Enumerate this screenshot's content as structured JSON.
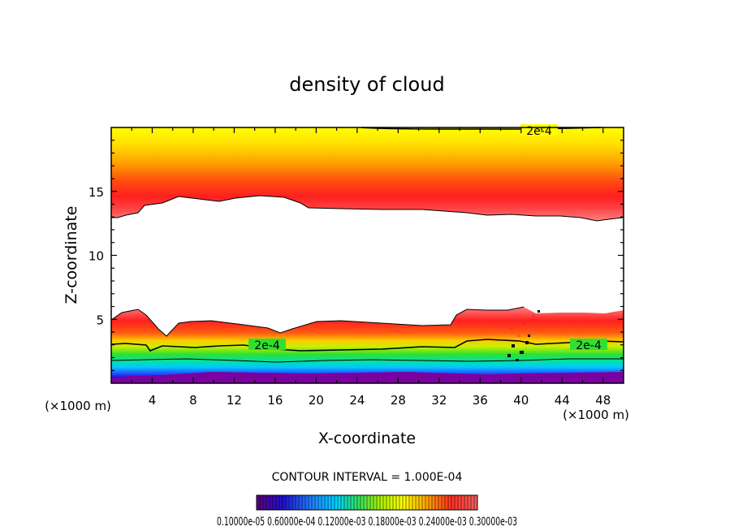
{
  "chart_data": {
    "type": "heatmap",
    "title": "density of cloud",
    "xlabel": "X-coordinate",
    "ylabel": "Z-coordinate",
    "x_unit": "(×1000 m)",
    "xlim": [
      0,
      50
    ],
    "ylim": [
      0,
      20
    ],
    "x_ticks": [
      4,
      8,
      12,
      16,
      20,
      24,
      28,
      32,
      36,
      40,
      44,
      48
    ],
    "y_ticks": [
      5,
      10,
      15
    ],
    "contour_interval_text": "CONTOUR INTERVAL = 1.000E-04",
    "contour_labels": [
      "2e-4",
      "2e-4",
      "2e-4"
    ],
    "colorbar_text": "0.10000e-05 0.60000e-04 0.12000e-03 0.18000e-03 0.24000e-03 0.30000e-03",
    "colorbar_colors": [
      "#5a007a",
      "#2010d0",
      "#2060ff",
      "#00c8ff",
      "#00e0a0",
      "#30e030",
      "#c8f000",
      "#ffff00",
      "#ffc000",
      "#ff7000",
      "#ff2020",
      "#f06060"
    ]
  }
}
